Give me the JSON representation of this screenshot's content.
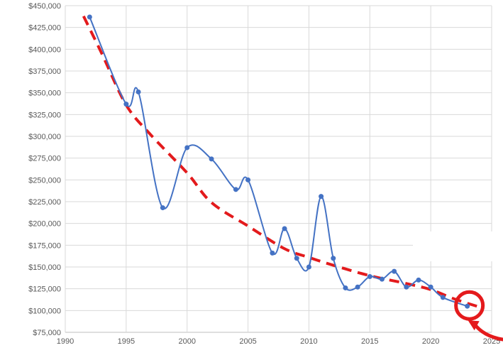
{
  "chart_data": {
    "type": "line",
    "title": "",
    "xlabel": "",
    "ylabel": "",
    "xlim": [
      1990,
      2025
    ],
    "ylim": [
      75000,
      450000
    ],
    "x_ticks": [
      1990,
      1995,
      2000,
      2005,
      2010,
      2015,
      2020,
      2025
    ],
    "x_tick_labels": [
      "1990",
      "1995",
      "2000",
      "2005",
      "2010",
      "2015",
      "2020",
      "2025"
    ],
    "y_ticks": [
      75000,
      100000,
      125000,
      150000,
      175000,
      200000,
      225000,
      250000,
      275000,
      300000,
      325000,
      350000,
      375000,
      400000,
      425000,
      450000
    ],
    "y_tick_labels": [
      "$75,000",
      "$100,000",
      "$125,000",
      "$150,000",
      "$175,000",
      "$200,000",
      "$225,000",
      "$250,000",
      "$275,000",
      "$300,000",
      "$325,000",
      "$350,000",
      "$375,000",
      "$400,000",
      "$425,000",
      "$450,000"
    ],
    "grid": true,
    "legend": "none",
    "series": [
      {
        "style": "smooth-line-with-markers",
        "color": "#4472c4",
        "x": [
          1992,
          1995,
          1996,
          1998,
          2000,
          2002,
          2004,
          2005,
          2007,
          2008,
          2009,
          2010,
          2011,
          2012,
          2013,
          2014,
          2015,
          2016,
          2017,
          2018,
          2019,
          2020,
          2021,
          2023
        ],
        "y": [
          437000,
          337000,
          351000,
          218000,
          287000,
          274000,
          239000,
          250000,
          166000,
          194000,
          160000,
          150000,
          231000,
          160000,
          126000,
          127000,
          139000,
          136000,
          145000,
          127000,
          135000,
          127000,
          115000,
          105000
        ]
      },
      {
        "style": "dashed-trendline",
        "color": "#e31a1c",
        "x": [
          1991.5,
          1993,
          1995,
          1997,
          2000,
          2002,
          2005,
          2008,
          2010,
          2012,
          2015,
          2018,
          2020,
          2022,
          2024
        ],
        "y": [
          438000,
          395000,
          336000,
          302000,
          258000,
          224000,
          197000,
          171000,
          161000,
          152000,
          140000,
          131000,
          124000,
          113000,
          104000
        ]
      }
    ],
    "annotations": [
      {
        "shape": "circle",
        "color": "#e41a1c",
        "target_x": 2023,
        "target_y": 105000
      },
      {
        "shape": "arrow",
        "color": "#e41a1c",
        "points_to": "circle"
      }
    ]
  }
}
